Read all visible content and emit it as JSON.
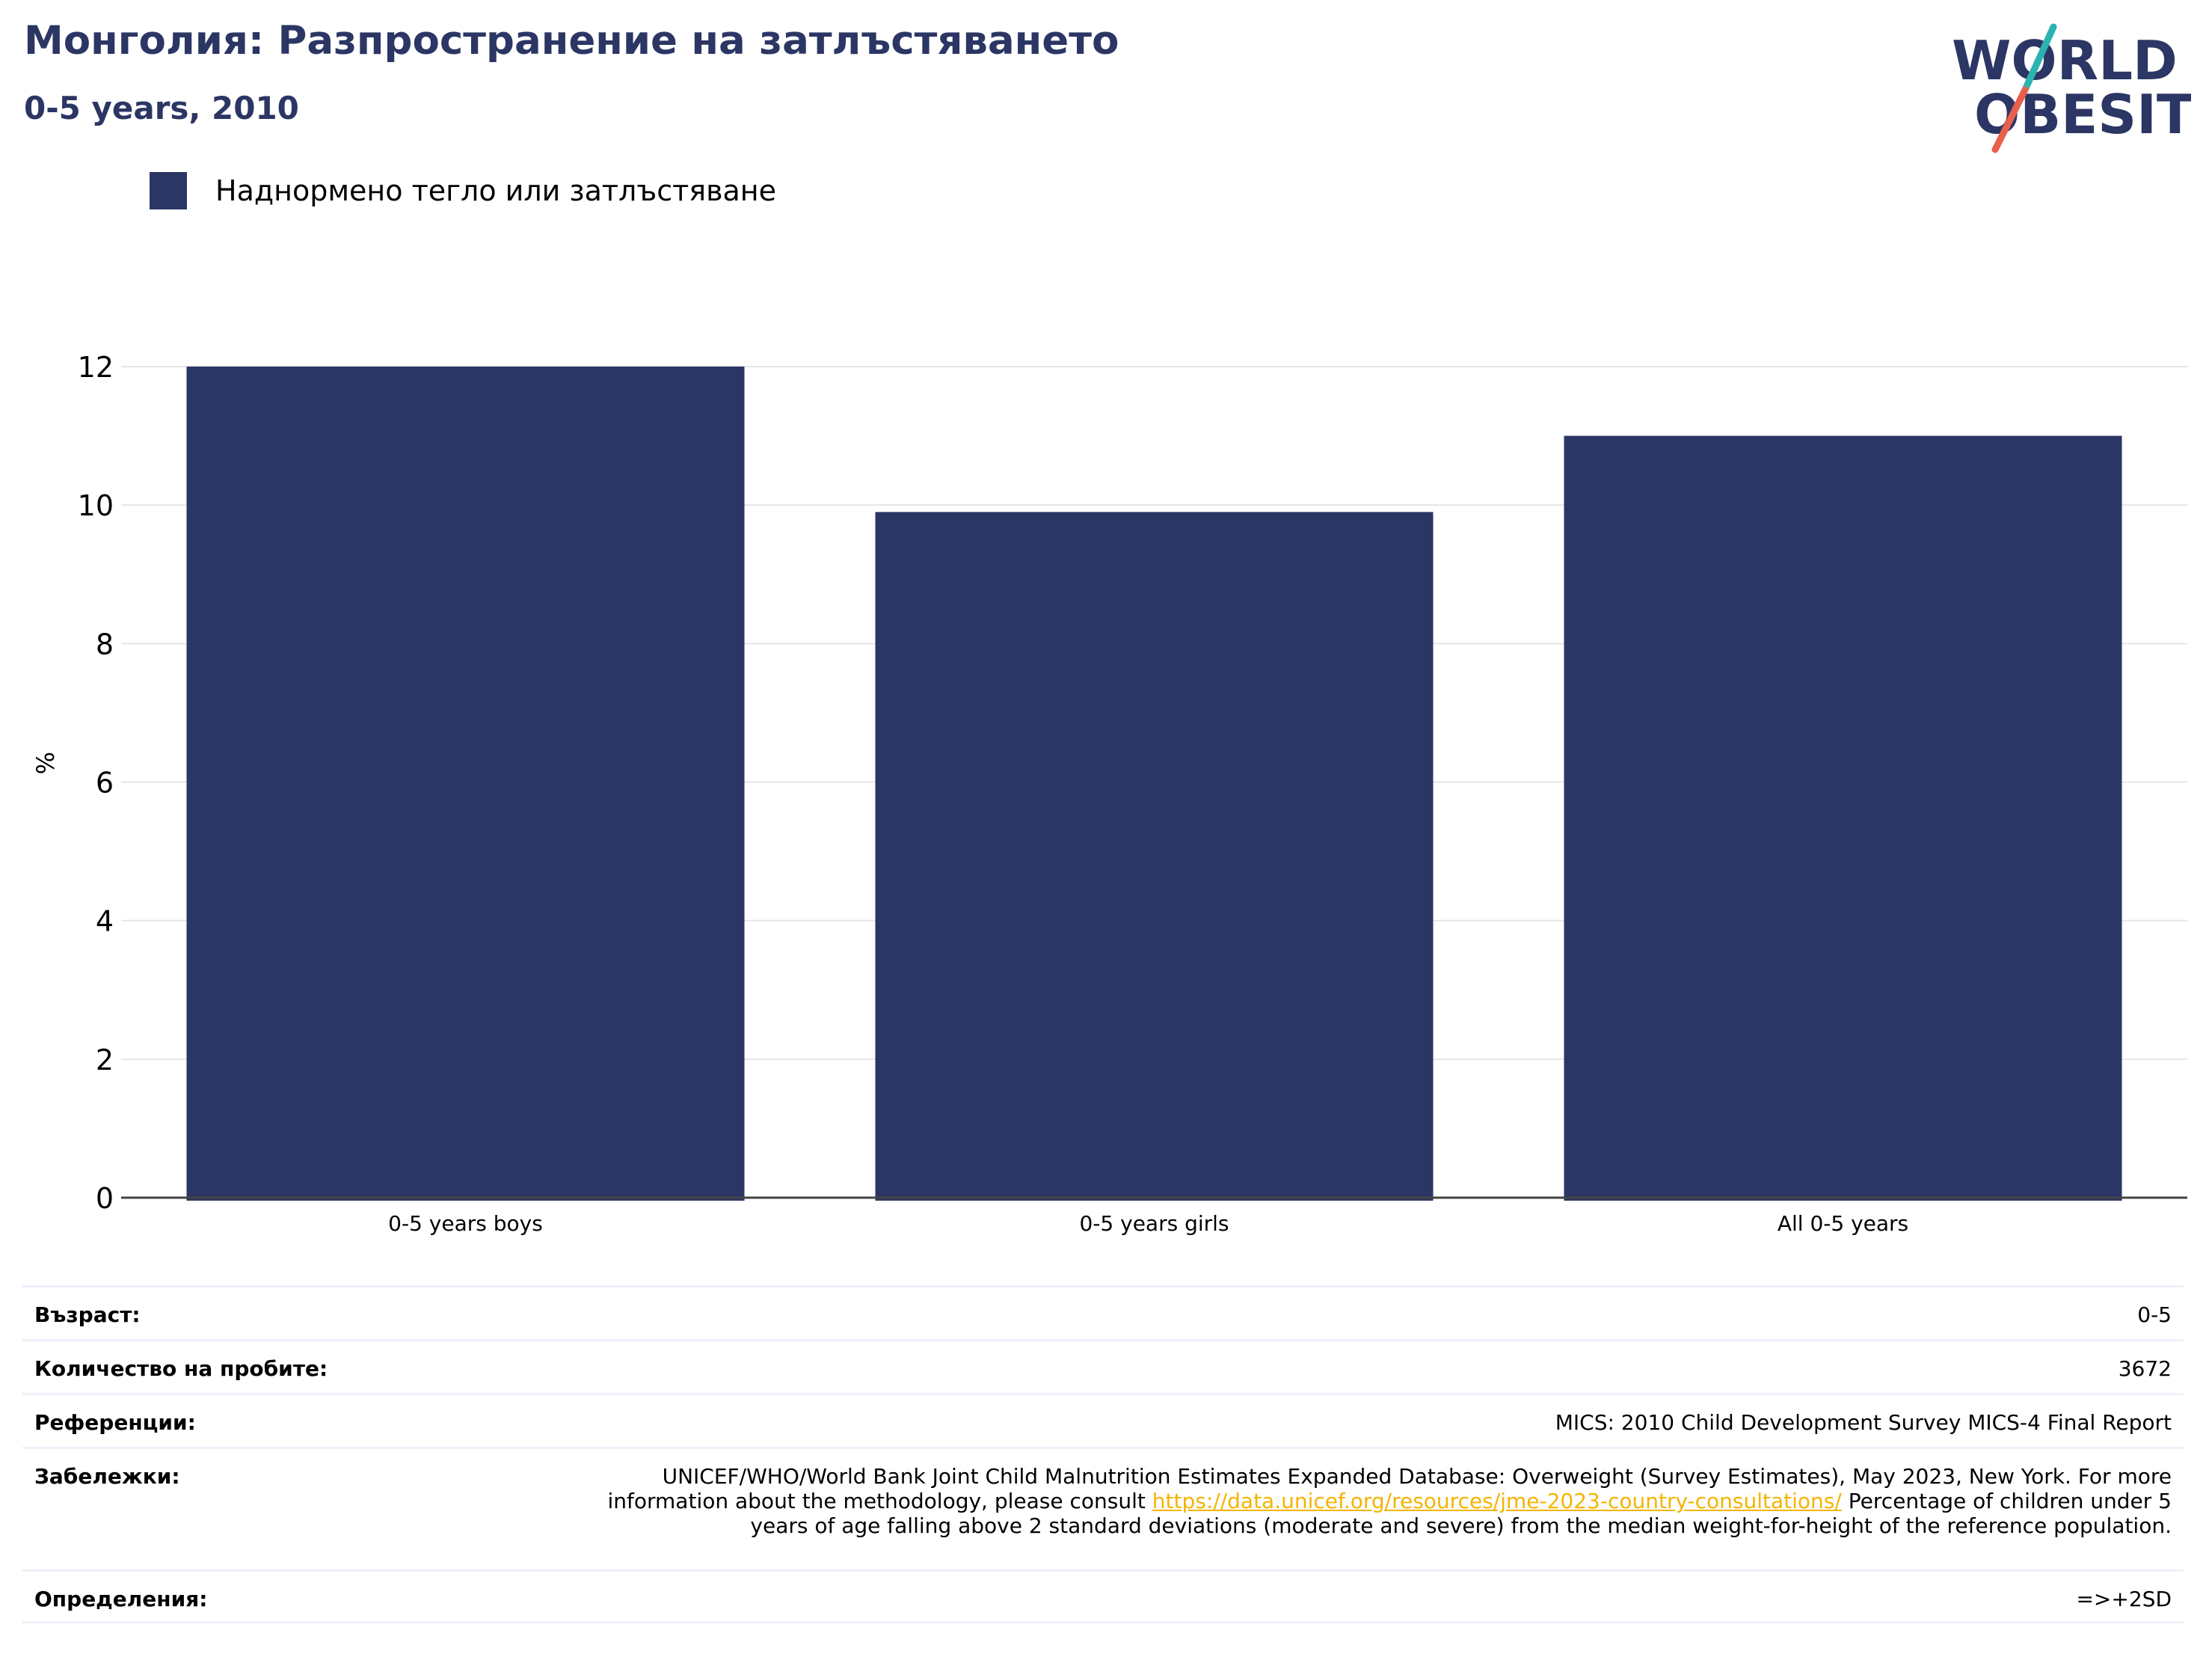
{
  "header": {
    "title": "Монголия: Разпространение на затлъстяването",
    "subtitle": "0-5 years, 2010"
  },
  "logo": {
    "line1": "WORLD",
    "line2": "OBESITY"
  },
  "colors": {
    "bar": "#2b3664",
    "title": "#2b3664",
    "link": "#f4b400",
    "grid": "#e6e6e6"
  },
  "chart_data": {
    "type": "bar",
    "categories": [
      "0-5 years boys",
      "0-5 years girls",
      "All 0-5 years"
    ],
    "series": [
      {
        "name": "Наднормено тегло или затлъстяване",
        "values": [
          12.0,
          9.9,
          11.0
        ]
      }
    ],
    "ylabel": "%",
    "yticks": [
      0,
      2,
      4,
      6,
      8,
      10,
      12
    ],
    "ylim": [
      0,
      12
    ],
    "grid": true,
    "legend": "top-left"
  },
  "meta": {
    "age": {
      "label": "Възраст:",
      "value": "0-5"
    },
    "sample": {
      "label": "Количество на пробите:",
      "value": "3672"
    },
    "refs": {
      "label": "Референции:",
      "value": "MICS: 2010 Child Development Survey MICS-4 Final Report"
    },
    "notes": {
      "label": "Забележки:",
      "text1": "UNICEF/WHO/World Bank Joint Child Malnutrition Estimates Expanded Database: Overweight (Survey Estimates), May 2023, New York. For more information about the methodology, please consult ",
      "link": "https://data.unicef.org/resources/jme-2023-country-consultations/",
      "text2": " Percentage of children under 5 years of age falling above 2 standard deviations (moderate and severe) from the median weight-for-height of the reference population."
    },
    "defs": {
      "label": "Определения:",
      "value": "=>+2SD"
    }
  }
}
